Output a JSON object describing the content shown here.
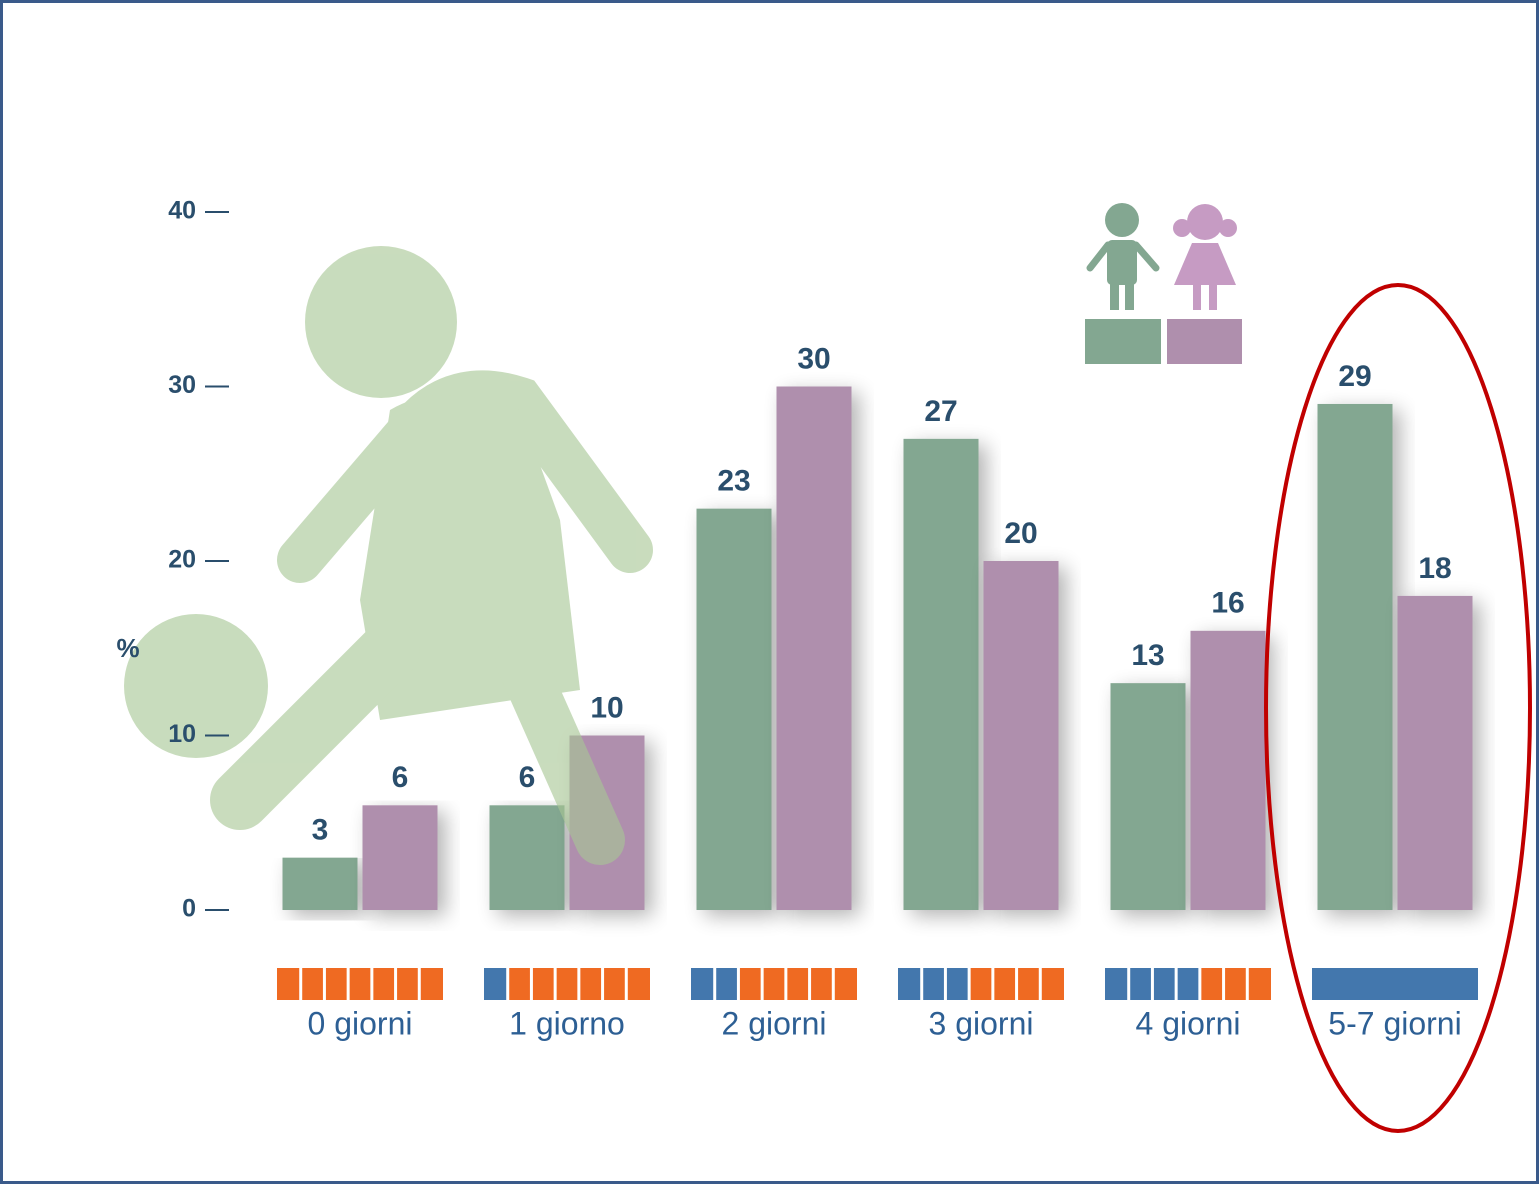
{
  "chart_data": {
    "type": "bar",
    "y_label": "%",
    "categories": [
      "0 giorni",
      "1 giorno",
      "2 giorni",
      "3 giorni",
      "4 giorni",
      "5-7 giorni"
    ],
    "series": [
      {
        "color": "#83a791",
        "values": [
          3,
          6,
          23,
          27,
          13,
          29
        ]
      },
      {
        "color": "#af8fad",
        "values": [
          6,
          10,
          30,
          20,
          16,
          18
        ]
      }
    ],
    "ylim": [
      0,
      40
    ],
    "yticks": [
      0,
      10,
      20,
      30,
      40
    ]
  }
}
